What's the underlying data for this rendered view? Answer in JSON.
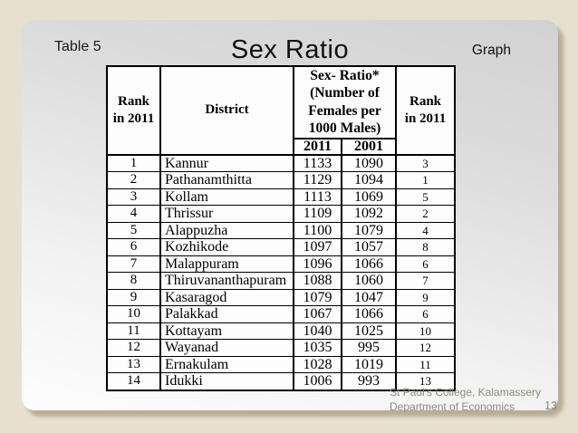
{
  "slide": {
    "corner_label": "Table 5",
    "title": "Sex Ratio",
    "link_label": "Graph",
    "footer": {
      "line1": "St Paul's College, Kalamassery",
      "line2": "Department of Economics",
      "page_number": "13"
    }
  },
  "table": {
    "headers": {
      "rank_left": "Rank\nin 2011",
      "district": "District",
      "ratio_group": "Sex- Ratio*\n(Number of\nFemales per\n1000 Males)",
      "sub_2011": "2011",
      "sub_2001": "2001",
      "rank_right": "Rank\nin 2011"
    },
    "rows": [
      {
        "rank": "1",
        "district": "Kannur",
        "ratio_2011": "1133",
        "ratio_2001": "1090",
        "rank_right": "3"
      },
      {
        "rank": "2",
        "district": "Pathanamthitta",
        "ratio_2011": "1129",
        "ratio_2001": "1094",
        "rank_right": "1"
      },
      {
        "rank": "3",
        "district": "Kollam",
        "ratio_2011": "1113",
        "ratio_2001": "1069",
        "rank_right": "5"
      },
      {
        "rank": "4",
        "district": "Thrissur",
        "ratio_2011": "1109",
        "ratio_2001": "1092",
        "rank_right": "2"
      },
      {
        "rank": "5",
        "district": "Alappuzha",
        "ratio_2011": "1100",
        "ratio_2001": "1079",
        "rank_right": "4"
      },
      {
        "rank": "6",
        "district": "Kozhikode",
        "ratio_2011": "1097",
        "ratio_2001": "1057",
        "rank_right": "8"
      },
      {
        "rank": "7",
        "district": "Malappuram",
        "ratio_2011": "1096",
        "ratio_2001": "1066",
        "rank_right": "6"
      },
      {
        "rank": "8",
        "district": "Thiruvananthapuram",
        "ratio_2011": "1088",
        "ratio_2001": "1060",
        "rank_right": "7"
      },
      {
        "rank": "9",
        "district": "Kasaragod",
        "ratio_2011": "1079",
        "ratio_2001": "1047",
        "rank_right": "9"
      },
      {
        "rank": "10",
        "district": "Palakkad",
        "ratio_2011": "1067",
        "ratio_2001": "1066",
        "rank_right": "6"
      },
      {
        "rank": "11",
        "district": "Kottayam",
        "ratio_2011": "1040",
        "ratio_2001": "1025",
        "rank_right": "10"
      },
      {
        "rank": "12",
        "district": "Wayanad",
        "ratio_2011": "1035",
        "ratio_2001": "995",
        "rank_right": "12"
      },
      {
        "rank": "13",
        "district": "Ernakulam",
        "ratio_2011": "1028",
        "ratio_2001": "1019",
        "rank_right": "11"
      },
      {
        "rank": "14",
        "district": "Idukki",
        "ratio_2011": "1006",
        "ratio_2001": "993",
        "rank_right": "13"
      }
    ]
  },
  "colors": {
    "page_background": "#e8e0ce",
    "slide_top": "#d2d2d2",
    "slide_bottom": "#fdfdfd",
    "table_border": "#000000",
    "footer_text": "#8e8a7d",
    "shadow": "#978b70"
  }
}
